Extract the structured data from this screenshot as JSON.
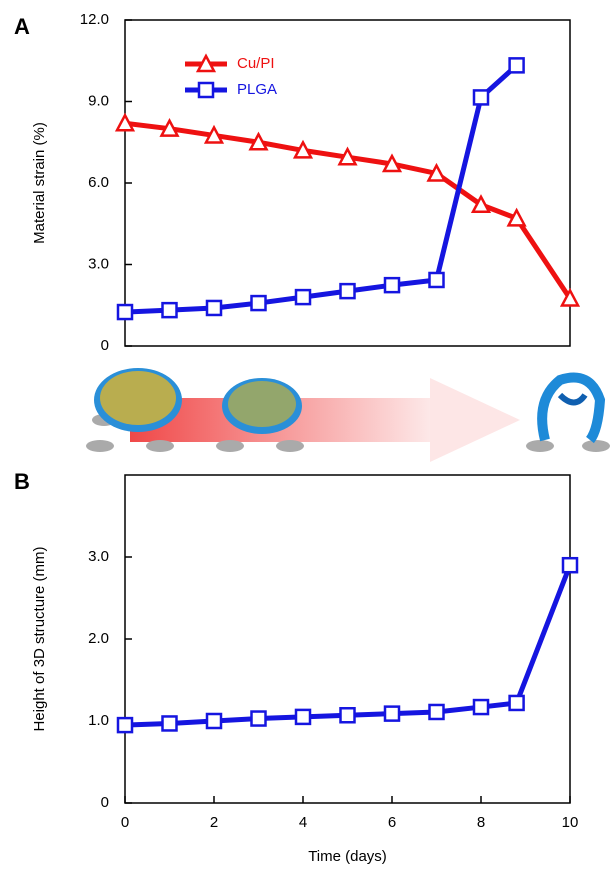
{
  "chart_data": [
    {
      "type": "line",
      "panel_label": "A",
      "ylabel": "Material strain (%)",
      "xlim": [
        0,
        10
      ],
      "ylim": [
        0,
        12
      ],
      "yticks": [
        0,
        {
          "value": 3,
          "label": "3.0"
        },
        {
          "value": 6,
          "label": "6.0"
        },
        {
          "value": 9,
          "label": "9.0"
        },
        {
          "value": 12,
          "label": "12.0"
        }
      ],
      "legend": "upper left",
      "series": [
        {
          "name": "Cu/PI",
          "color": "#ee1111",
          "marker": "triangle",
          "x": [
            0,
            1,
            2,
            3,
            4,
            5,
            6,
            7,
            8,
            8.8,
            10
          ],
          "values": [
            8.2,
            8.0,
            7.75,
            7.5,
            7.2,
            6.95,
            6.7,
            6.35,
            5.2,
            4.7,
            1.75
          ]
        },
        {
          "name": "PLGA",
          "color": "#1515e0",
          "marker": "square",
          "x": [
            0,
            1,
            2,
            3,
            4,
            5,
            6,
            7,
            8,
            8.8
          ],
          "values": [
            1.25,
            1.32,
            1.4,
            1.58,
            1.8,
            2.02,
            2.24,
            2.43,
            9.15,
            10.33
          ]
        }
      ]
    },
    {
      "type": "line",
      "panel_label": "B",
      "ylabel": "Height of 3D structure (mm)",
      "xlabel": "Time (days)",
      "xlim": [
        0,
        10
      ],
      "ylim": [
        0,
        4
      ],
      "xticks": [
        0,
        2,
        4,
        6,
        8,
        10
      ],
      "yticks": [
        0,
        {
          "value": 1,
          "label": "1.0"
        },
        {
          "value": 2,
          "label": "2.0"
        },
        {
          "value": 3,
          "label": "3.0"
        }
      ],
      "series": [
        {
          "color": "#1515e0",
          "marker": "square",
          "x": [
            0,
            1,
            2,
            3,
            4,
            5,
            6,
            7,
            8,
            8.8,
            10
          ],
          "values": [
            0.95,
            0.97,
            1.0,
            1.03,
            1.05,
            1.07,
            1.09,
            1.11,
            1.17,
            1.22,
            2.9
          ]
        }
      ]
    }
  ]
}
